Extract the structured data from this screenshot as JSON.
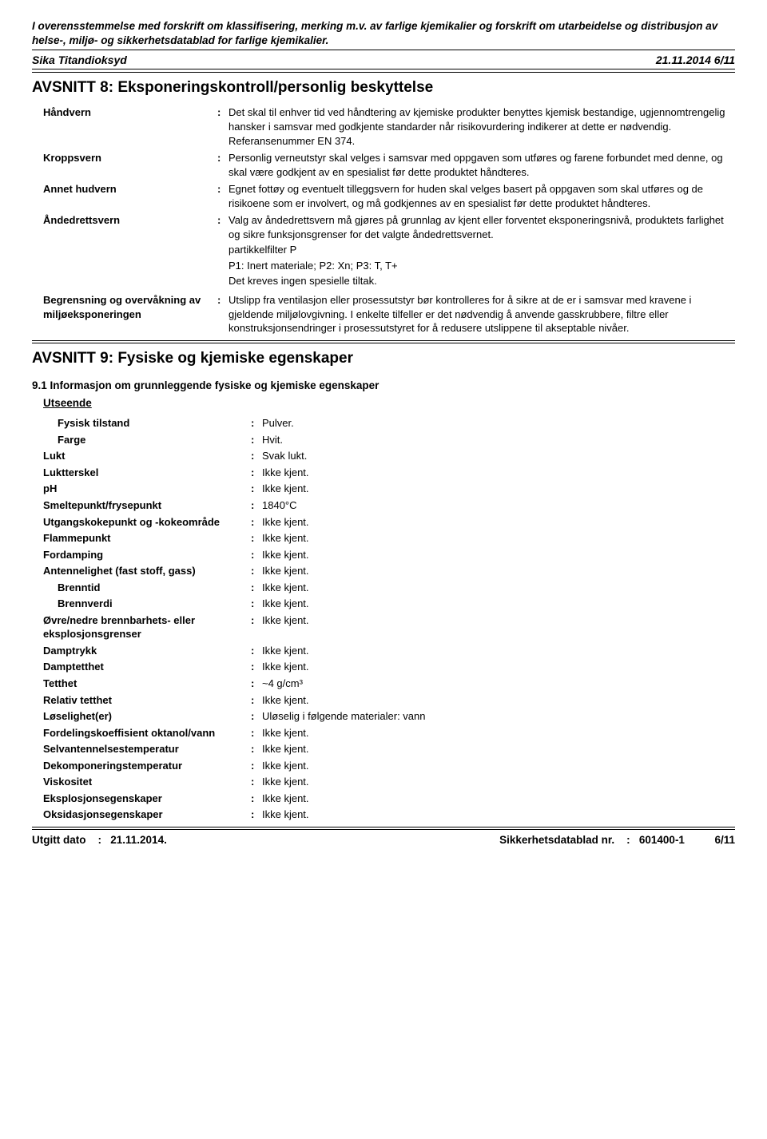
{
  "preamble": "I overensstemmelse med forskrift om klassifisering, merking m.v. av farlige kjemikalier og forskrift om utarbeidelse og distribusjon av helse-, miljø- og sikkerhetsdatablad for farlige kjemikalier.",
  "titlebar": {
    "product": "Sika Titandioksyd",
    "datepage": "21.11.2014 6/11"
  },
  "section8": {
    "heading": "AVSNITT 8: Eksponeringskontroll/personlig beskyttelse",
    "rows": [
      {
        "key": "Håndvern",
        "val": "Det skal til enhver tid ved håndtering av kjemiske produkter benyttes kjemisk bestandige, ugjennomtrengelig hansker i samsvar med godkjente standarder når risikovurdering indikerer at dette er nødvendig. Referansenummer EN 374."
      },
      {
        "key": "Kroppsvern",
        "val": "Personlig verneutstyr skal velges i samsvar med oppgaven som utføres og farene forbundet med denne, og skal være godkjent av en spesialist før dette produktet håndteres."
      },
      {
        "key": "Annet hudvern",
        "val": "Egnet fottøy og eventuelt tilleggsvern for huden skal velges basert på oppgaven som skal utføres og de risikoene som er involvert, og må godkjennes av en spesialist før dette produktet håndteres."
      },
      {
        "key": "Åndedrettsvern",
        "val_lines": [
          "Valg av åndedrettsvern må gjøres på grunnlag av kjent eller forventet eksponeringsnivå, produktets farlighet og sikre funksjonsgrenser for det valgte åndedrettsvernet.",
          "partikkelfilter P",
          "P1: Inert materiale; P2: Xn; P3: T, T+",
          "Det kreves ingen spesielle tiltak."
        ]
      },
      {
        "key": "Begrensning og overvåkning av miljøeksponeringen",
        "val": "Utslipp fra ventilasjon eller prosessutstyr bør kontrolleres for å sikre at de er i samsvar med kravene i gjeldende miljølovgivning. I enkelte tilfeller er det nødvendig å anvende gasskrubbere, filtre eller konstruksjonsendringer i prosessutstyret for å redusere utslippene til akseptable nivåer."
      }
    ]
  },
  "section9": {
    "heading": "AVSNITT 9: Fysiske og kjemiske egenskaper",
    "sub1": "9.1 Informasjon om grunnleggende fysiske og kjemiske egenskaper",
    "appearance_label": "Utseende",
    "rows_appearance": [
      {
        "key": "Fysisk tilstand",
        "val": "Pulver.",
        "indent": true
      },
      {
        "key": "Farge",
        "val": "Hvit.",
        "indent": true
      }
    ],
    "rows_main": [
      {
        "key": "Lukt",
        "val": "Svak lukt."
      },
      {
        "key": "Luktterskel",
        "val": "Ikke kjent."
      },
      {
        "key": "pH",
        "val": "Ikke kjent."
      },
      {
        "key": "Smeltepunkt/frysepunkt",
        "val": "1840°C"
      },
      {
        "key": "Utgangskokepunkt og -kokeområde",
        "val": "Ikke kjent."
      },
      {
        "key": "Flammepunkt",
        "val": "Ikke kjent."
      },
      {
        "key": "Fordamping",
        "val": "Ikke kjent."
      },
      {
        "key": "Antennelighet (fast stoff, gass)",
        "val": "Ikke kjent."
      },
      {
        "key": "Brenntid",
        "val": "Ikke kjent.",
        "indent": true
      },
      {
        "key": "Brennverdi",
        "val": "Ikke kjent.",
        "indent": true
      },
      {
        "key": "Øvre/nedre brennbarhets- eller eksplosjonsgrenser",
        "val": "Ikke kjent."
      },
      {
        "key": "Damptrykk",
        "val": "Ikke kjent."
      },
      {
        "key": "Damptetthet",
        "val": "Ikke kjent."
      },
      {
        "key": "Tetthet",
        "val": "~4 g/cm³"
      },
      {
        "key": "Relativ tetthet",
        "val": "Ikke kjent."
      },
      {
        "key": "Løselighet(er)",
        "val": "Uløselig i følgende materialer: vann"
      },
      {
        "key": "Fordelingskoeffisient oktanol/vann",
        "val": "Ikke kjent."
      },
      {
        "key": "Selvantennelsestemperatur",
        "val": "Ikke kjent."
      },
      {
        "key": "Dekomponeringstemperatur",
        "val": "Ikke kjent."
      },
      {
        "key": "Viskositet",
        "val": "Ikke kjent."
      },
      {
        "key": "Eksplosjonsegenskaper",
        "val": "Ikke kjent."
      },
      {
        "key": "Oksidasjonsegenskaper",
        "val": "Ikke kjent."
      }
    ]
  },
  "footer": {
    "left_label": "Utgitt dato",
    "left_val": "21.11.2014.",
    "right_label": "Sikkerhetsdatablad nr.",
    "right_val": "601400-1",
    "page": "6/11"
  }
}
